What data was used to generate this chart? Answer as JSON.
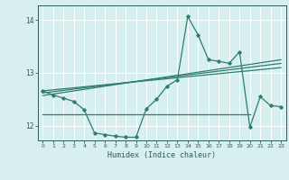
{
  "xlabel": "Humidex (Indice chaleur)",
  "bg_color": "#d8eff0",
  "grid_color": "#ffffff",
  "line_color": "#2e7d6e",
  "xlim": [
    -0.5,
    23.5
  ],
  "ylim": [
    11.72,
    14.28
  ],
  "yticks": [
    12,
    13,
    14
  ],
  "xticks": [
    0,
    1,
    2,
    3,
    4,
    5,
    6,
    7,
    8,
    9,
    10,
    11,
    12,
    13,
    14,
    15,
    16,
    17,
    18,
    19,
    20,
    21,
    22,
    23
  ],
  "data_x": [
    0,
    1,
    2,
    3,
    4,
    5,
    6,
    7,
    8,
    9,
    10,
    11,
    12,
    13,
    14,
    15,
    16,
    17,
    18,
    19,
    20,
    21,
    22,
    23
  ],
  "data_y": [
    12.66,
    12.58,
    12.52,
    12.46,
    12.3,
    11.86,
    11.83,
    11.8,
    11.78,
    11.78,
    12.32,
    12.5,
    12.75,
    12.87,
    14.07,
    13.72,
    13.25,
    13.22,
    13.18,
    13.4,
    11.97,
    12.55,
    12.38,
    12.36
  ],
  "hline_y": 12.22,
  "reg1": [
    12.66,
    13.1
  ],
  "reg2": [
    12.62,
    13.18
  ],
  "reg3": [
    12.57,
    13.25
  ]
}
